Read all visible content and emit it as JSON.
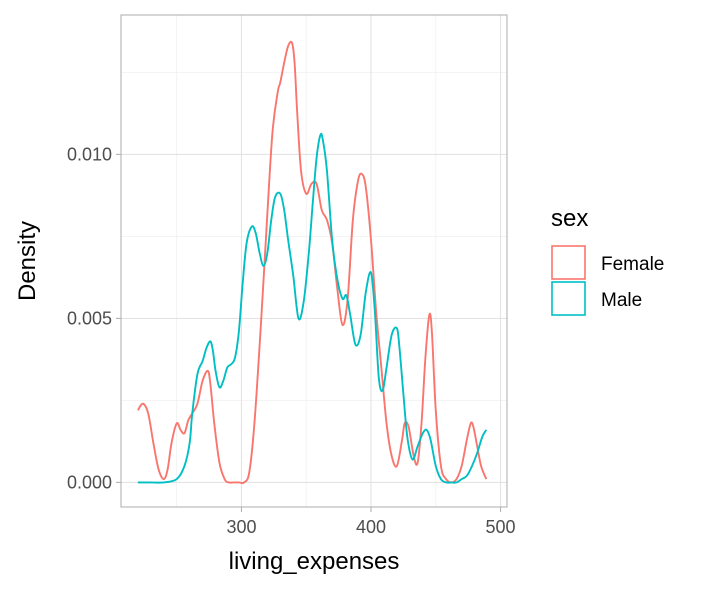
{
  "chart_data": {
    "type": "line",
    "xlabel": "living_expenses",
    "ylabel": "Density",
    "xlim": [
      207,
      505
    ],
    "ylim": [
      -0.00075,
      0.01425
    ],
    "x_ticks": [
      300,
      400,
      500
    ],
    "x_tick_labels": [
      "300",
      "400",
      "500"
    ],
    "y_ticks": [
      0.0,
      0.005,
      0.01
    ],
    "y_tick_labels": [
      "0.000",
      "0.005",
      "0.010"
    ],
    "x_minor_ticks": [
      250,
      350,
      450
    ],
    "y_minor_ticks": [
      0.0025,
      0.0075,
      0.0125
    ],
    "grid": true,
    "legend": {
      "title": "sex",
      "position": "right",
      "entries": [
        {
          "label": "Female",
          "color": "#F8766D"
        },
        {
          "label": "Male",
          "color": "#00BFC4"
        }
      ]
    },
    "series": [
      {
        "name": "Female",
        "color": "#F8766D",
        "x": [
          220,
          224,
          228,
          232,
          236,
          240,
          243,
          246,
          250,
          253,
          256,
          259,
          262,
          266,
          270,
          274,
          276,
          279,
          283,
          287,
          290,
          294,
          298,
          302,
          306,
          310,
          315,
          320,
          324,
          328,
          330,
          333,
          336,
          339,
          341,
          343,
          346,
          350,
          354,
          358,
          362,
          366,
          370,
          374,
          378,
          382,
          386,
          390,
          393,
          396,
          400,
          404,
          408,
          412,
          416,
          420,
          424,
          426,
          429,
          433,
          436,
          439,
          442,
          445,
          447,
          450,
          454,
          458,
          462,
          466,
          470,
          474,
          477,
          479,
          482,
          485,
          489
        ],
        "y": [
          0.0022,
          0.0024,
          0.0021,
          0.0012,
          0.0004,
          0.0001,
          0.0004,
          0.0012,
          0.0018,
          0.0016,
          0.0015,
          0.0019,
          0.0021,
          0.0024,
          0.0031,
          0.0034,
          0.003,
          0.0018,
          0.0006,
          0.0001,
          0.0,
          0.0,
          0.0,
          0.0,
          0.0003,
          0.0018,
          0.0048,
          0.0082,
          0.0107,
          0.0119,
          0.0122,
          0.0128,
          0.0133,
          0.0134,
          0.0128,
          0.0113,
          0.0095,
          0.0088,
          0.0091,
          0.0091,
          0.0083,
          0.008,
          0.0073,
          0.0059,
          0.0048,
          0.0056,
          0.008,
          0.0092,
          0.0094,
          0.009,
          0.0074,
          0.0052,
          0.0035,
          0.0018,
          0.0008,
          0.0005,
          0.0013,
          0.0018,
          0.0017,
          0.0008,
          0.0006,
          0.0018,
          0.0038,
          0.0051,
          0.0046,
          0.0022,
          0.0005,
          0.0001,
          0.0,
          0.0001,
          0.0005,
          0.0013,
          0.0018,
          0.0017,
          0.0011,
          0.0005,
          0.0001
        ]
      },
      {
        "name": "Male",
        "color": "#00BFC4",
        "x": [
          220,
          230,
          240,
          250,
          256,
          260,
          262,
          266,
          270,
          273,
          276,
          278,
          280,
          283,
          286,
          289,
          292,
          295,
          298,
          301,
          304,
          308,
          311,
          314,
          317,
          320,
          323,
          326,
          330,
          333,
          336,
          340,
          344,
          348,
          352,
          355,
          358,
          361,
          363,
          366,
          370,
          374,
          378,
          381,
          384,
          388,
          392,
          396,
          400,
          403,
          406,
          409,
          412,
          416,
          420,
          422,
          425,
          428,
          432,
          436,
          440,
          443,
          446,
          450,
          454,
          458,
          462,
          466,
          470,
          474,
          478,
          482,
          486,
          489
        ],
        "y": [
          0.0,
          0.0,
          0.0,
          0.0001,
          0.0005,
          0.0012,
          0.0021,
          0.0033,
          0.0037,
          0.0041,
          0.0043,
          0.004,
          0.0034,
          0.0029,
          0.0031,
          0.0035,
          0.0036,
          0.0038,
          0.0046,
          0.0061,
          0.0073,
          0.0078,
          0.0076,
          0.007,
          0.0066,
          0.007,
          0.008,
          0.0087,
          0.0088,
          0.0083,
          0.0074,
          0.0063,
          0.005,
          0.0055,
          0.007,
          0.0085,
          0.0099,
          0.0106,
          0.0104,
          0.0095,
          0.0074,
          0.0062,
          0.0056,
          0.0057,
          0.0051,
          0.0042,
          0.0045,
          0.0058,
          0.0064,
          0.0052,
          0.0032,
          0.0028,
          0.0035,
          0.0045,
          0.0047,
          0.0041,
          0.0027,
          0.0014,
          0.0007,
          0.0011,
          0.0015,
          0.0016,
          0.0013,
          0.0005,
          0.0001,
          0.0,
          0.0,
          0.0,
          0.0001,
          0.0002,
          0.0005,
          0.0009,
          0.0014,
          0.0016
        ]
      }
    ]
  }
}
